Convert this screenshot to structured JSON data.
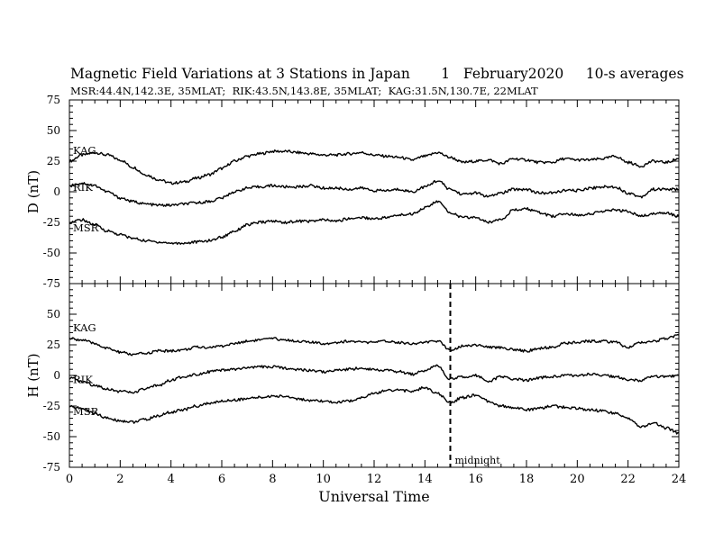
{
  "header": {
    "title": "Magnetic Field Variations at 3 Stations in Japan       1   February2020     10-s averages",
    "subtitle": "MSR:44.4N,142.3E, 35MLAT;  RIK:43.5N,143.8E, 35MLAT;  KAG:31.5N,130.7E, 22MLAT"
  },
  "chart_data": [
    {
      "type": "line",
      "panel": "top",
      "ylabel": "D (nT)",
      "ylim": [
        -75,
        75
      ],
      "yticks": [
        "75",
        "50",
        "25",
        "0",
        "-25",
        "-50",
        "-75"
      ],
      "xlim": [
        0,
        24
      ],
      "series": [
        {
          "name": "KAG",
          "x": [
            0,
            0.5,
            1,
            1.5,
            2,
            2.5,
            3,
            3.5,
            4,
            4.5,
            5,
            5.5,
            6,
            6.5,
            7,
            7.5,
            8,
            8.5,
            9,
            9.5,
            10,
            10.5,
            11,
            11.5,
            12,
            12.5,
            13,
            13.5,
            14,
            14.5,
            15,
            15.5,
            16,
            16.5,
            17,
            17.5,
            18,
            18.5,
            19,
            19.5,
            20,
            20.5,
            21,
            21.5,
            22,
            22.5,
            23,
            23.5,
            24
          ],
          "values": [
            25,
            30,
            32,
            30,
            26,
            20,
            14,
            10,
            7,
            8,
            11,
            14,
            19,
            25,
            29,
            31,
            33,
            33,
            32,
            31,
            30,
            30,
            31,
            32,
            30,
            29,
            28,
            26,
            29,
            32,
            28,
            24,
            25,
            26,
            23,
            27,
            26,
            24,
            24,
            27,
            26,
            26,
            27,
            29,
            24,
            21,
            25,
            24,
            27
          ]
        },
        {
          "name": "RIK",
          "x": [
            0,
            0.5,
            1,
            1.5,
            2,
            2.5,
            3,
            3.5,
            4,
            4.5,
            5,
            5.5,
            6,
            6.5,
            7,
            7.5,
            8,
            8.5,
            9,
            9.5,
            10,
            10.5,
            11,
            11.5,
            12,
            12.5,
            13,
            13.5,
            14,
            14.5,
            15,
            15.5,
            16,
            16.5,
            17,
            17.5,
            18,
            18.5,
            19,
            19.5,
            20,
            20.5,
            21,
            21.5,
            22,
            22.5,
            23,
            23.5,
            24
          ],
          "values": [
            5,
            7,
            5,
            0,
            -5,
            -8,
            -10,
            -11,
            -11,
            -10,
            -9,
            -8,
            -5,
            0,
            3,
            4,
            5,
            4,
            4,
            5,
            3,
            3,
            2,
            3,
            1,
            1,
            2,
            0,
            4,
            9,
            2,
            -2,
            -1,
            -4,
            -1,
            2,
            2,
            -1,
            -1,
            1,
            1,
            3,
            4,
            4,
            -1,
            -4,
            2,
            2,
            2
          ]
        },
        {
          "name": "MSR",
          "x": [
            0,
            0.5,
            1,
            1.5,
            2,
            2.5,
            3,
            3.5,
            4,
            4.5,
            5,
            5.5,
            6,
            6.5,
            7,
            7.5,
            8,
            8.5,
            9,
            9.5,
            10,
            10.5,
            11,
            11.5,
            12,
            12.5,
            13,
            13.5,
            14,
            14.5,
            15,
            15.5,
            16,
            16.5,
            17,
            17.5,
            18,
            18.5,
            19,
            19.5,
            20,
            20.5,
            21,
            21.5,
            22,
            22.5,
            23,
            23.5,
            24
          ],
          "values": [
            -25,
            -23,
            -27,
            -32,
            -35,
            -38,
            -40,
            -41,
            -42,
            -42,
            -41,
            -40,
            -37,
            -32,
            -27,
            -25,
            -24,
            -25,
            -24,
            -24,
            -23,
            -24,
            -22,
            -21,
            -22,
            -21,
            -19,
            -18,
            -13,
            -8,
            -17,
            -21,
            -21,
            -25,
            -22,
            -15,
            -14,
            -17,
            -20,
            -18,
            -19,
            -18,
            -16,
            -15,
            -16,
            -20,
            -18,
            -17,
            -20
          ]
        }
      ]
    },
    {
      "type": "line",
      "panel": "bottom",
      "ylabel": "H (nT)",
      "xlabel": "Universal Time",
      "ylim": [
        -75,
        75
      ],
      "yticks": [
        "50",
        "25",
        "0",
        "-25",
        "-50",
        "-75"
      ],
      "xlim": [
        0,
        24
      ],
      "xticks": [
        "0",
        "2",
        "4",
        "6",
        "8",
        "10",
        "12",
        "14",
        "16",
        "18",
        "20",
        "22",
        "24"
      ],
      "annotation": "midnight",
      "midnight_x": 15,
      "series": [
        {
          "name": "KAG",
          "x": [
            0,
            0.5,
            1,
            1.5,
            2,
            2.5,
            3,
            3.5,
            4,
            4.5,
            5,
            5.5,
            6,
            6.5,
            7,
            7.5,
            8,
            8.5,
            9,
            9.5,
            10,
            10.5,
            11,
            11.5,
            12,
            12.5,
            13,
            13.5,
            14,
            14.5,
            15,
            15.5,
            16,
            16.5,
            17,
            17.5,
            18,
            18.5,
            19,
            19.5,
            20,
            20.5,
            21,
            21.5,
            22,
            22.5,
            23,
            23.5,
            24
          ],
          "values": [
            30,
            29,
            26,
            22,
            19,
            17,
            18,
            20,
            20,
            21,
            23,
            23,
            24,
            26,
            28,
            29,
            30,
            29,
            28,
            27,
            26,
            27,
            28,
            27,
            27,
            28,
            27,
            26,
            27,
            28,
            21,
            24,
            25,
            23,
            23,
            21,
            20,
            22,
            23,
            26,
            27,
            28,
            28,
            27,
            23,
            27,
            28,
            30,
            33
          ]
        },
        {
          "name": "RIK",
          "x": [
            0,
            0.5,
            1,
            1.5,
            2,
            2.5,
            3,
            3.5,
            4,
            4.5,
            5,
            5.5,
            6,
            6.5,
            7,
            7.5,
            8,
            8.5,
            9,
            9.5,
            10,
            10.5,
            11,
            11.5,
            12,
            12.5,
            13,
            13.5,
            14,
            14.5,
            15,
            15.5,
            16,
            16.5,
            17,
            17.5,
            18,
            18.5,
            19,
            19.5,
            20,
            20.5,
            21,
            21.5,
            22,
            22.5,
            23,
            23.5,
            24
          ],
          "values": [
            -2,
            -5,
            -8,
            -11,
            -13,
            -14,
            -11,
            -8,
            -4,
            -1,
            1,
            3,
            4,
            5,
            6,
            7,
            7,
            6,
            5,
            4,
            3,
            4,
            5,
            6,
            5,
            4,
            3,
            1,
            4,
            8,
            -3,
            -1,
            0,
            -5,
            -1,
            -3,
            -4,
            -2,
            -1,
            0,
            0,
            1,
            0,
            -1,
            -4,
            -4,
            -1,
            -1,
            0
          ]
        },
        {
          "name": "MSR",
          "x": [
            0,
            0.5,
            1,
            1.5,
            2,
            2.5,
            3,
            3.5,
            4,
            4.5,
            5,
            5.5,
            6,
            6.5,
            7,
            7.5,
            8,
            8.5,
            9,
            9.5,
            10,
            10.5,
            11,
            11.5,
            12,
            12.5,
            13,
            13.5,
            14,
            14.5,
            15,
            15.5,
            16,
            16.5,
            17,
            17.5,
            18,
            18.5,
            19,
            19.5,
            20,
            20.5,
            21,
            21.5,
            22,
            22.5,
            23,
            23.5,
            24
          ],
          "values": [
            -25,
            -27,
            -31,
            -35,
            -37,
            -38,
            -36,
            -33,
            -30,
            -28,
            -25,
            -23,
            -21,
            -20,
            -19,
            -18,
            -17,
            -17,
            -19,
            -21,
            -21,
            -22,
            -21,
            -18,
            -15,
            -12,
            -12,
            -13,
            -10,
            -15,
            -22,
            -18,
            -16,
            -21,
            -25,
            -26,
            -28,
            -27,
            -25,
            -26,
            -27,
            -28,
            -29,
            -31,
            -35,
            -42,
            -39,
            -43,
            -47
          ]
        }
      ]
    }
  ],
  "colors": {
    "line": "#000000",
    "axis": "#000000",
    "background": "#ffffff"
  }
}
